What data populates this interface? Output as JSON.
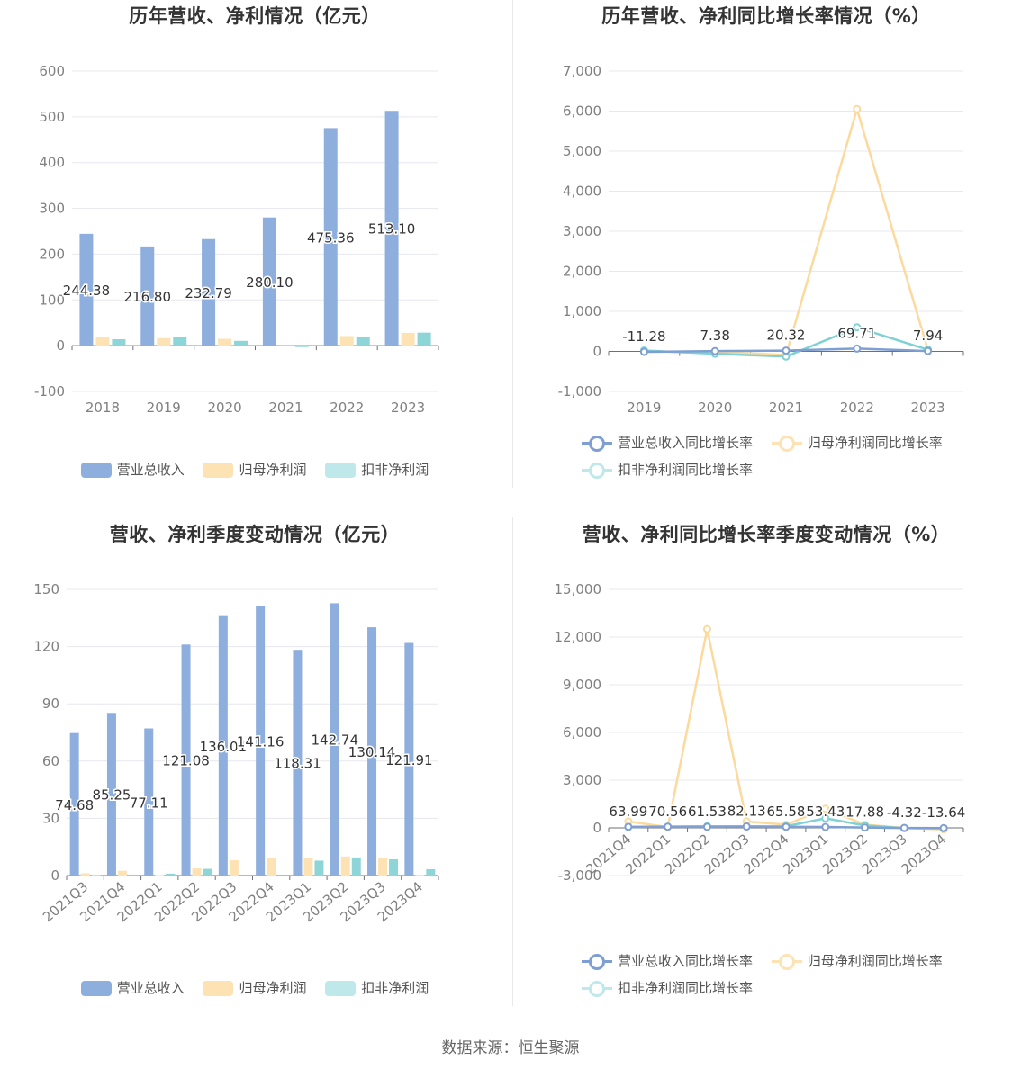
{
  "source_text": "数据来源：恒生聚源",
  "colors": {
    "revenue": "#8eaedd",
    "net_profit": "#fde2b4",
    "deducted_profit": "#8ed5d8",
    "revenue_line": "#7f9fd3",
    "net_profit_line": "#fcd99d",
    "deducted_profit_line": "#7fd1d4",
    "grid": "#e6e8ef",
    "axis_text": "#808080"
  },
  "chart_data": [
    {
      "id": "annual-bar",
      "type": "bar",
      "title": "历年营收、净利情况（亿元）",
      "categories": [
        "2018",
        "2019",
        "2020",
        "2021",
        "2022",
        "2023"
      ],
      "series": [
        {
          "name": "营业总收入",
          "values": [
            244.38,
            216.8,
            232.79,
            280.1,
            475.36,
            513.1
          ]
        },
        {
          "name": "归母净利润",
          "values": [
            18.5,
            16.5,
            15.0,
            0.5,
            21.0,
            28.0
          ]
        },
        {
          "name": "扣非净利润",
          "values": [
            14.0,
            18.0,
            10.5,
            -3.0,
            20.0,
            28.5
          ]
        }
      ],
      "data_labels": [
        "244.38",
        "216.80",
        "232.79",
        "280.10",
        "475.36",
        "513.10"
      ],
      "ylim": [
        -100,
        600
      ],
      "yticks": [
        -100,
        0,
        100,
        200,
        300,
        400,
        500,
        600
      ],
      "ytick_labels": [
        "-100",
        "0",
        "100",
        "200",
        "300",
        "400",
        "500",
        "600"
      ],
      "grid": true,
      "legend_position": "bottom"
    },
    {
      "id": "annual-line",
      "type": "line",
      "title": "历年营收、净利同比增长率情况（%）",
      "categories": [
        "2019",
        "2020",
        "2021",
        "2022",
        "2023"
      ],
      "series": [
        {
          "name": "营业总收入同比增长率",
          "values": [
            -11.28,
            7.38,
            20.32,
            69.71,
            7.94
          ]
        },
        {
          "name": "归母净利润同比增长率",
          "values": [
            -10,
            -8,
            -90,
            6050,
            35
          ]
        },
        {
          "name": "扣非净利润同比增长率",
          "values": [
            22,
            -60,
            -130,
            600,
            40
          ]
        }
      ],
      "data_labels": [
        "-11.28",
        "7.38",
        "20.32",
        "69.71",
        "7.94"
      ],
      "ylim": [
        -1000,
        7000
      ],
      "yticks": [
        -1000,
        0,
        1000,
        2000,
        3000,
        4000,
        5000,
        6000,
        7000
      ],
      "ytick_labels": [
        "-1,000",
        "0",
        "1,000",
        "2,000",
        "3,000",
        "4,000",
        "5,000",
        "6,000",
        "7,000"
      ],
      "grid": true,
      "legend_position": "bottom"
    },
    {
      "id": "quarterly-bar",
      "type": "bar",
      "title": "营收、净利季度变动情况（亿元）",
      "categories": [
        "2021Q3",
        "2021Q4",
        "2022Q1",
        "2022Q2",
        "2022Q3",
        "2022Q4",
        "2023Q1",
        "2023Q2",
        "2023Q3",
        "2023Q4"
      ],
      "series": [
        {
          "name": "营业总收入",
          "values": [
            74.68,
            85.25,
            77.11,
            121.08,
            136.01,
            141.16,
            118.31,
            142.74,
            130.14,
            121.91
          ]
        },
        {
          "name": "归母净利润",
          "values": [
            1.2,
            2.5,
            0.3,
            3.8,
            8.0,
            9.0,
            9.2,
            10.0,
            9.3,
            0.5
          ]
        },
        {
          "name": "扣非净利润",
          "values": [
            0.3,
            0.5,
            1.0,
            3.5,
            0.0,
            0.0,
            7.8,
            9.5,
            8.5,
            3.3
          ]
        }
      ],
      "data_labels": [
        "74.68",
        "85.25",
        "77.11",
        "121.08",
        "136.01",
        "141.16",
        "118.31",
        "142.74",
        "130.14",
        "121.91"
      ],
      "ylim": [
        0,
        150
      ],
      "yticks": [
        0,
        30,
        60,
        90,
        120,
        150
      ],
      "ytick_labels": [
        "0",
        "30",
        "60",
        "90",
        "120",
        "150"
      ],
      "grid": true,
      "legend_position": "bottom"
    },
    {
      "id": "quarterly-line",
      "type": "line",
      "title": "营收、净利同比增长率季度变动情况（%）",
      "categories": [
        "2021Q4",
        "2022Q1",
        "2022Q2",
        "2022Q3",
        "2022Q4",
        "2023Q1",
        "2023Q2",
        "2023Q3",
        "2023Q4"
      ],
      "series": [
        {
          "name": "营业总收入同比增长率",
          "values": [
            63.99,
            70.56,
            61.53,
            82.13,
            65.58,
            53.43,
            17.88,
            -4.32,
            -13.64
          ]
        },
        {
          "name": "归母净利润同比增长率",
          "values": [
            400,
            50,
            12500,
            400,
            200,
            1200,
            200,
            0,
            -100
          ]
        },
        {
          "name": "扣非净利润同比增长率",
          "values": [
            60,
            80,
            100,
            90,
            100,
            600,
            150,
            -20,
            -30
          ]
        }
      ],
      "data_labels": [
        "63.99",
        "70.56",
        "61.53",
        "82.13",
        "65.58",
        "53.43",
        "17.88",
        "-4.32",
        "-13.64"
      ],
      "ylim": [
        -3000,
        15000
      ],
      "yticks": [
        -3000,
        0,
        3000,
        6000,
        9000,
        12000,
        15000
      ],
      "ytick_labels": [
        "-3,000",
        "0",
        "3,000",
        "6,000",
        "9,000",
        "12,000",
        "15,000"
      ],
      "grid": true,
      "legend_position": "bottom"
    }
  ]
}
